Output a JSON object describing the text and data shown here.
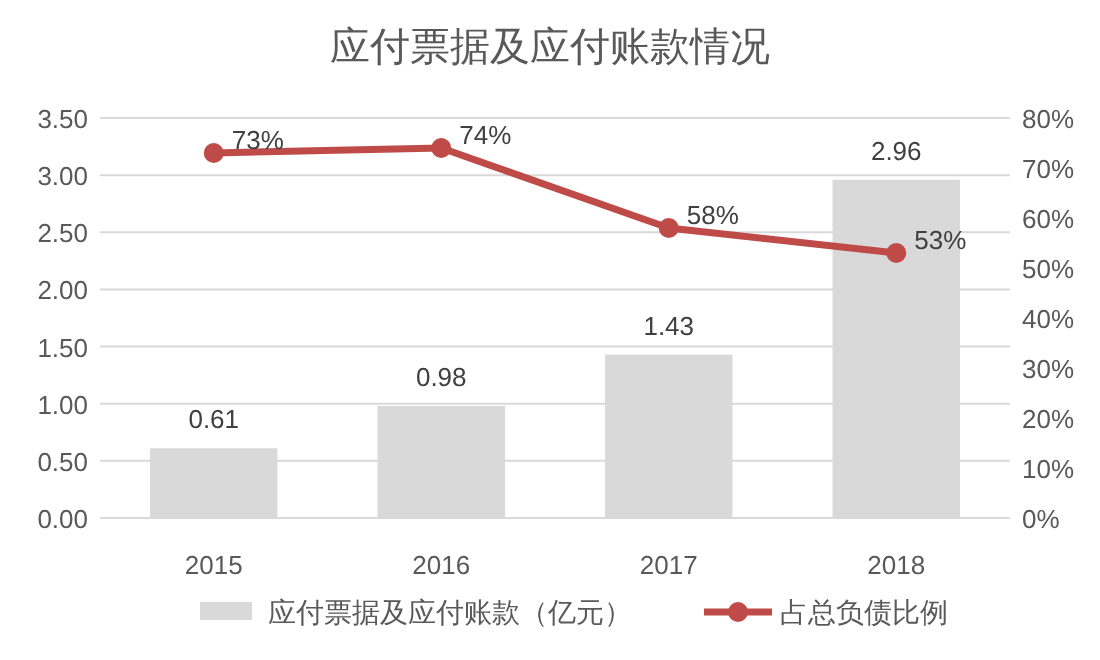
{
  "chart_data": {
    "type": "bar",
    "title": "应付票据及应付账款情况",
    "categories": [
      "2015",
      "2016",
      "2017",
      "2018"
    ],
    "series": [
      {
        "name": "应付票据及应付账款（亿元）",
        "color": "#d9d9d9",
        "values": [
          0.61,
          0.98,
          1.43,
          2.96
        ],
        "value_labels": [
          "0.61",
          "0.98",
          "1.43",
          "2.96"
        ]
      },
      {
        "name": "占总负债比例",
        "type": "line",
        "axis": "y2",
        "color": "#be4b48",
        "values": [
          73,
          74,
          58,
          53
        ],
        "value_labels": [
          "73%",
          "74%",
          "58%",
          "53%"
        ]
      }
    ],
    "ylim": [
      0,
      3.5
    ],
    "yticks": [
      {
        "value": 0,
        "label": "0.00"
      },
      {
        "value": 0.5,
        "label": "0.50"
      },
      {
        "value": 1,
        "label": "1.00"
      },
      {
        "value": 1.5,
        "label": "1.50"
      },
      {
        "value": 2,
        "label": "2.00"
      },
      {
        "value": 2.5,
        "label": "2.50"
      },
      {
        "value": 3,
        "label": "3.00"
      },
      {
        "value": 3.5,
        "label": "3.50"
      }
    ],
    "y2lim": [
      0,
      80
    ],
    "y2ticks": [
      {
        "value": 0,
        "label": "0%"
      },
      {
        "value": 10,
        "label": "10%"
      },
      {
        "value": 20,
        "label": "20%"
      },
      {
        "value": 30,
        "label": "30%"
      },
      {
        "value": 40,
        "label": "40%"
      },
      {
        "value": 50,
        "label": "50%"
      },
      {
        "value": 60,
        "label": "60%"
      },
      {
        "value": 70,
        "label": "70%"
      },
      {
        "value": 80,
        "label": "80%"
      }
    ],
    "grid": "y",
    "legend": "bottom",
    "marker": "circle",
    "line_style": "solid"
  }
}
